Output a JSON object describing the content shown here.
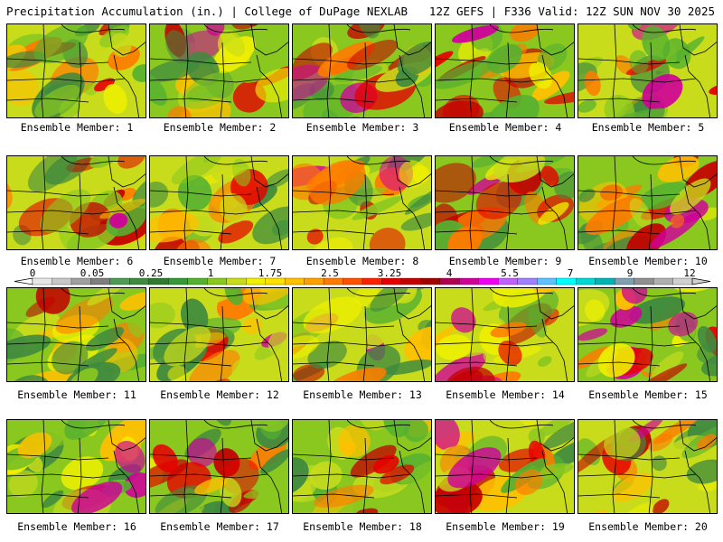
{
  "header": {
    "title": "Precipitation Accumulation (in.) | College of DuPage NEXLAB",
    "run_info": "12Z GEFS | F336 Valid: 12Z SUN NOV 30 2025"
  },
  "panels": [
    {
      "caption": "Ensemble Member: 1"
    },
    {
      "caption": "Ensemble Member: 2"
    },
    {
      "caption": "Ensemble Member: 3"
    },
    {
      "caption": "Ensemble Member: 4"
    },
    {
      "caption": "Ensemble Member: 5"
    },
    {
      "caption": "Ensemble Member: 6"
    },
    {
      "caption": "Ensemble Member: 7"
    },
    {
      "caption": "Ensemble Member: 8"
    },
    {
      "caption": "Ensemble Member: 9"
    },
    {
      "caption": "Ensemble Member: 10"
    },
    {
      "caption": "Ensemble Member: 11"
    },
    {
      "caption": "Ensemble Member: 12"
    },
    {
      "caption": "Ensemble Member: 13"
    },
    {
      "caption": "Ensemble Member: 14"
    },
    {
      "caption": "Ensemble Member: 15"
    },
    {
      "caption": "Ensemble Member: 16"
    },
    {
      "caption": "Ensemble Member: 17"
    },
    {
      "caption": "Ensemble Member: 18"
    },
    {
      "caption": "Ensemble Member: 19"
    },
    {
      "caption": "Ensemble Member: 20"
    }
  ],
  "colorbar": {
    "labels": [
      "0",
      "0.05",
      "0.25",
      "1",
      "1.75",
      "2.5",
      "3.25",
      "4",
      "5.5",
      "7",
      "9",
      "12"
    ],
    "colors": [
      "#e6e6e6",
      "#c8c8c8",
      "#a0a0a0",
      "#7e7e7e",
      "#4f9a56",
      "#3f8a3f",
      "#2f7a2f",
      "#379837",
      "#55b030",
      "#8ac820",
      "#c8dc1c",
      "#f0f000",
      "#ffe000",
      "#ffc000",
      "#ffa000",
      "#ff7a00",
      "#ff5000",
      "#ff2000",
      "#e60000",
      "#c40000",
      "#a00000",
      "#b00050",
      "#d0009a",
      "#f000f0",
      "#c060ff",
      "#a080ff",
      "#60c0ff",
      "#00ffff",
      "#00d8d8",
      "#00b4b4",
      "#80a0b0",
      "#909090",
      "#b0b0b0",
      "#d0d0d0"
    ]
  }
}
